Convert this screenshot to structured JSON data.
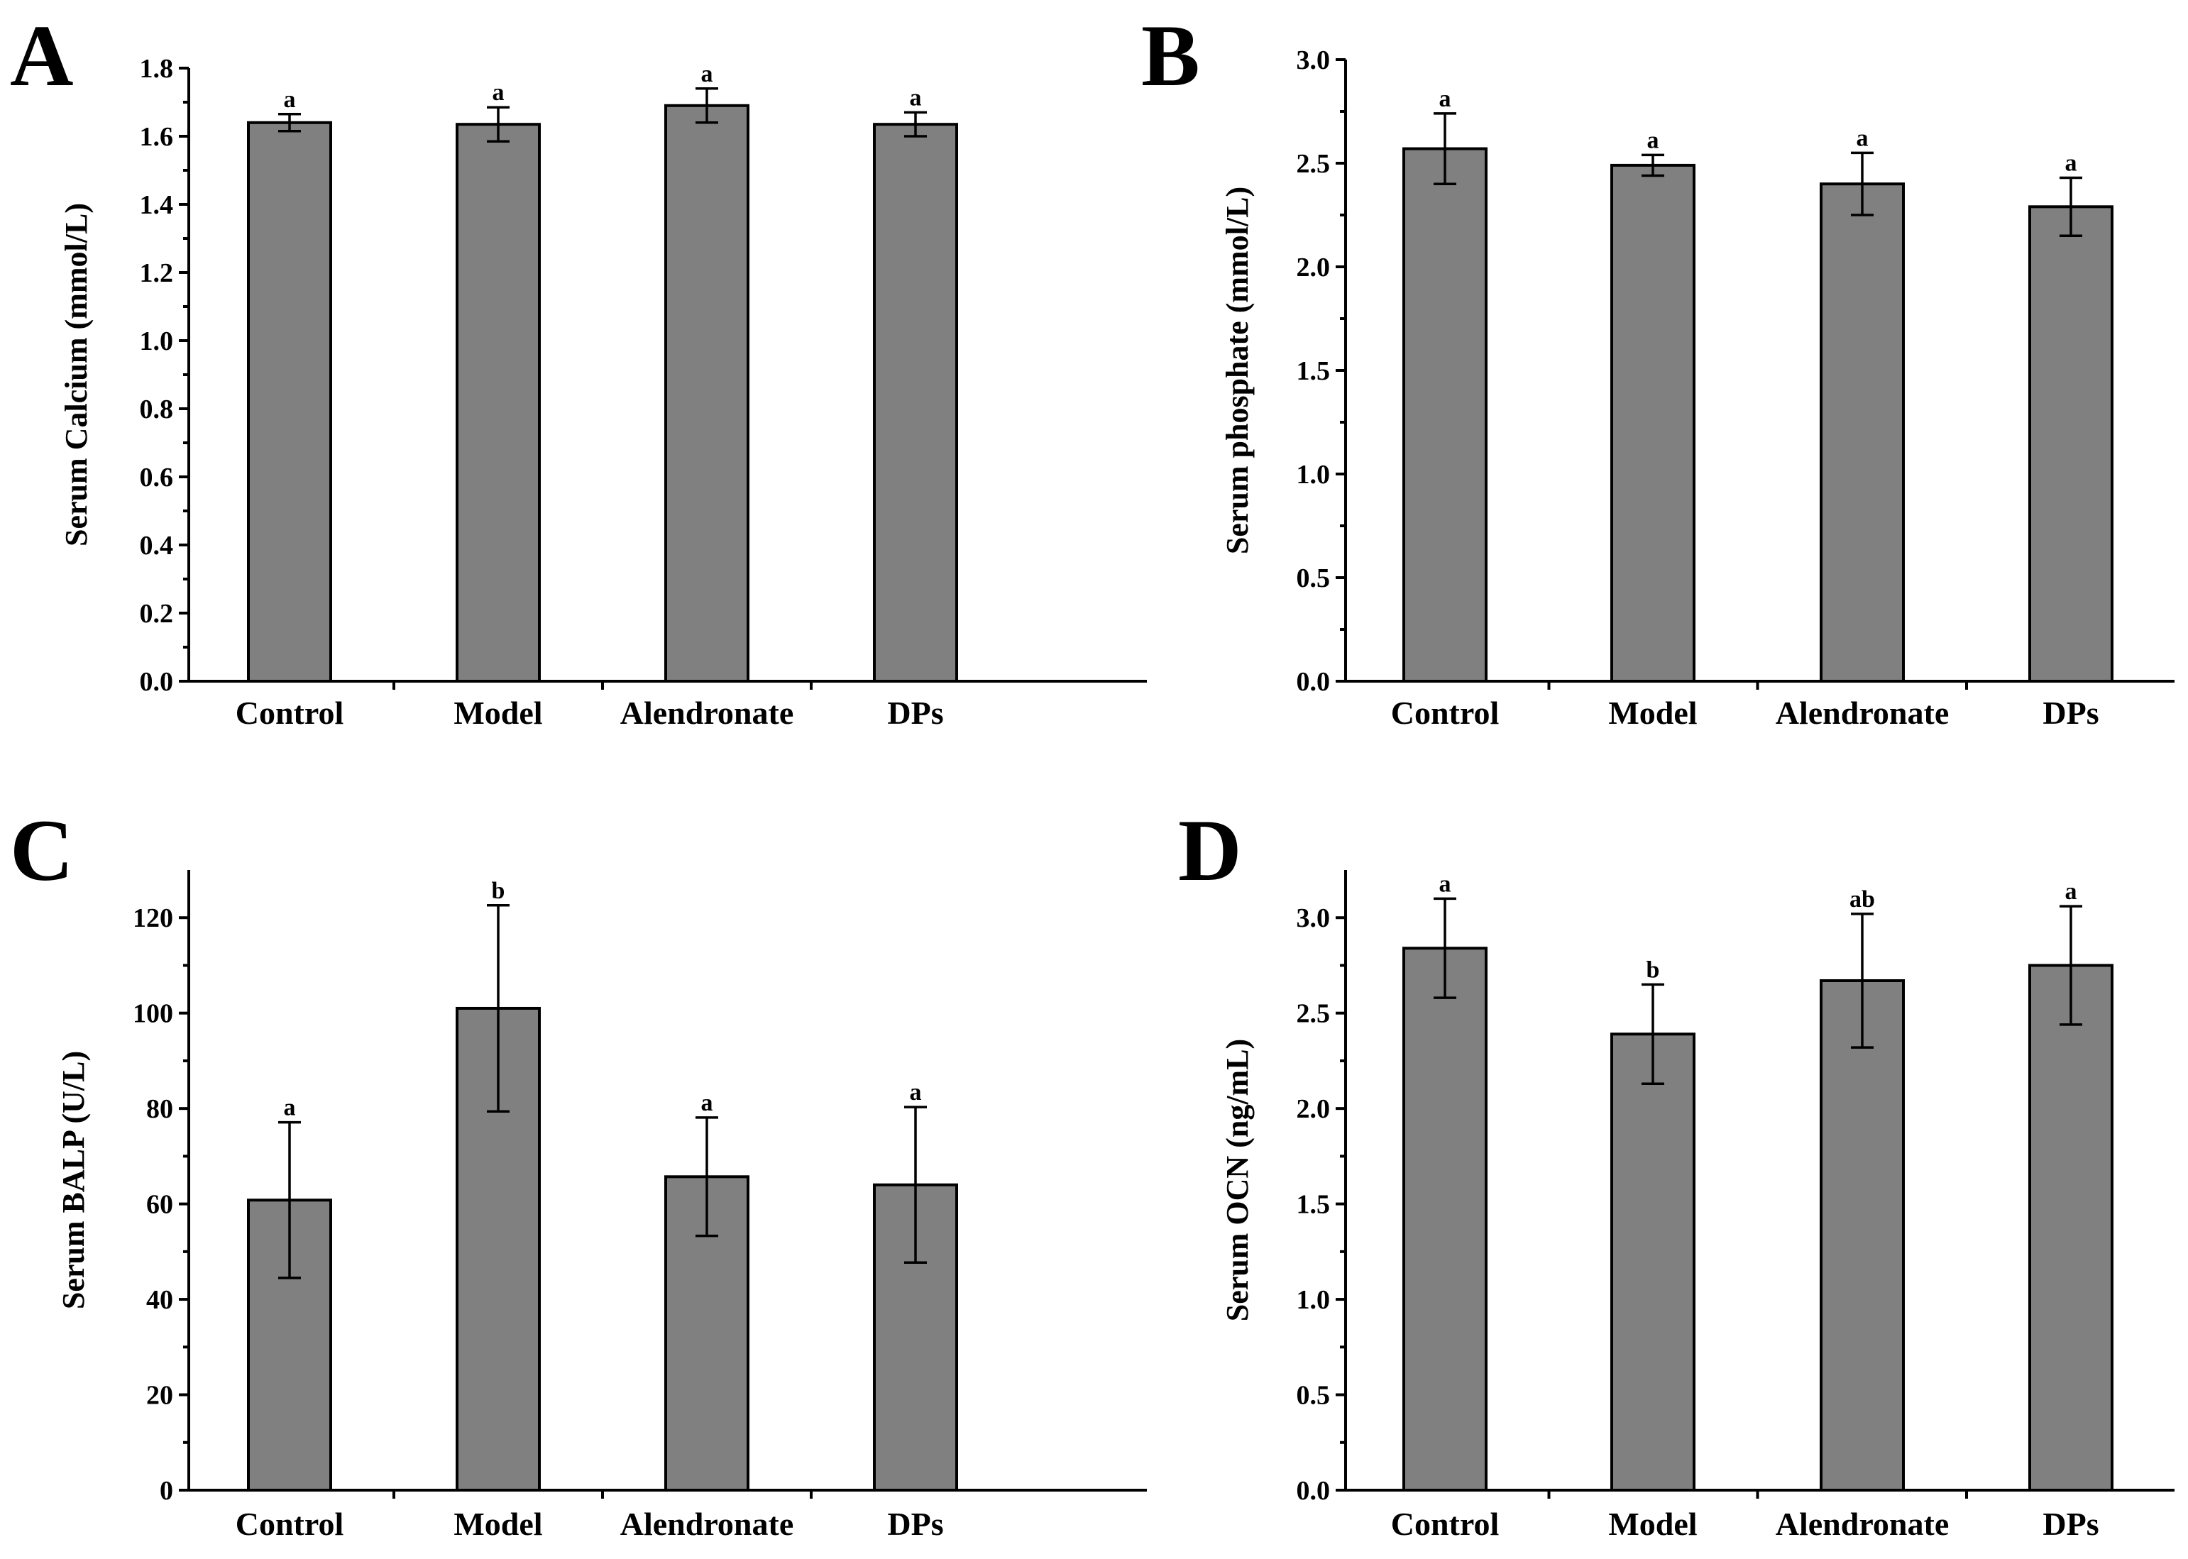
{
  "colors": {
    "bar_fill": "#808080",
    "axis": "#000000",
    "background": "#ffffff"
  },
  "chart_data": [
    {
      "type": "bar",
      "panel": "A",
      "title": "",
      "xlabel": "",
      "ylabel": "Serum Calcium (mmol/L)",
      "categories": [
        "Control",
        "Model",
        "Alendronate",
        "DPs"
      ],
      "values": [
        1.64,
        1.635,
        1.69,
        1.635
      ],
      "errors": [
        0.025,
        0.05,
        0.05,
        0.035
      ],
      "significance": [
        "a",
        "a",
        "a",
        "a"
      ],
      "ylim": [
        0,
        1.8
      ],
      "yticks": [
        0.0,
        0.2,
        0.4,
        0.6,
        0.8,
        1.0,
        1.2,
        1.4,
        1.6,
        1.8
      ],
      "ytick_labels": [
        "0.0",
        "0.2",
        "0.4",
        "0.6",
        "0.8",
        "1.0",
        "1.2",
        "1.4",
        "1.6",
        "1.8"
      ]
    },
    {
      "type": "bar",
      "panel": "B",
      "title": "",
      "xlabel": "",
      "ylabel": "Serum phosphate (mmol/L)",
      "categories": [
        "Control",
        "Model",
        "Alendronate",
        "DPs"
      ],
      "values": [
        2.57,
        2.49,
        2.4,
        2.29
      ],
      "errors": [
        0.17,
        0.05,
        0.15,
        0.14
      ],
      "significance": [
        "a",
        "a",
        "a",
        "a"
      ],
      "ylim": [
        0,
        3.0
      ],
      "yticks": [
        0.0,
        0.5,
        1.0,
        1.5,
        2.0,
        2.5,
        3.0
      ],
      "ytick_labels": [
        "0.0",
        "0.5",
        "1.0",
        "1.5",
        "2.0",
        "2.5",
        "3.0"
      ]
    },
    {
      "type": "bar",
      "panel": "C",
      "title": "",
      "xlabel": "",
      "ylabel": "Serum BALP (U/L)",
      "categories": [
        "Control",
        "Model",
        "Alendronate",
        "DPs"
      ],
      "values": [
        60.8,
        101,
        65.7,
        64
      ],
      "errors": [
        16.3,
        21.6,
        12.4,
        16.3
      ],
      "significance": [
        "a",
        "b",
        "a",
        "a"
      ],
      "ylim": [
        0,
        130
      ],
      "yticks": [
        0,
        20,
        40,
        60,
        80,
        100,
        120
      ],
      "ytick_labels": [
        "0",
        "20",
        "40",
        "60",
        "80",
        "100",
        "120"
      ]
    },
    {
      "type": "bar",
      "panel": "D",
      "title": "",
      "xlabel": "",
      "ylabel": "Serum OCN (ng/mL)",
      "categories": [
        "Control",
        "Model",
        "Alendronate",
        "DPs"
      ],
      "values": [
        2.84,
        2.39,
        2.67,
        2.75
      ],
      "errors": [
        0.26,
        0.26,
        0.35,
        0.31
      ],
      "significance": [
        "a",
        "b",
        "ab",
        "a"
      ],
      "ylim": [
        0,
        3.25
      ],
      "yticks": [
        0.0,
        0.5,
        1.0,
        1.5,
        2.0,
        2.5,
        3.0
      ],
      "ytick_labels": [
        "0.0",
        "0.5",
        "1.0",
        "1.5",
        "2.0",
        "2.5",
        "3.0"
      ]
    }
  ]
}
